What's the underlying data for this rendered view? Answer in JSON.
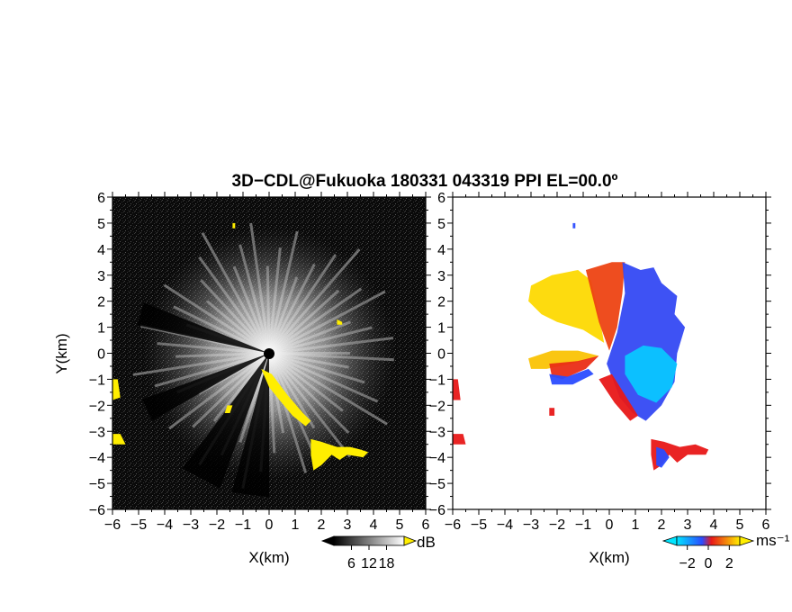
{
  "title": "3D−CDL@Fukuoka 180331 043319 PPI EL=00.0º",
  "chart_data": [
    {
      "type": "heatmap",
      "panel": "reflectivity",
      "xlabel": "X(km)",
      "ylabel": "Y(km)",
      "xlim": [
        -6,
        6
      ],
      "ylim": [
        -6,
        6
      ],
      "x_ticks": [
        "−6",
        "−5",
        "−4",
        "−3",
        "−2",
        "−1",
        "0",
        "1",
        "2",
        "3",
        "4",
        "5",
        "6"
      ],
      "y_ticks": [
        "−6",
        "−5",
        "−4",
        "−3",
        "−2",
        "−1",
        "0",
        "1",
        "2",
        "3",
        "4",
        "5",
        "6"
      ],
      "colormap": [
        "#000000",
        "#ffffff"
      ],
      "highlight_color": "#ffee00",
      "radar_origin": [
        0,
        0
      ],
      "colorbar": {
        "unit": "dB",
        "ticks": [
          "6",
          "12",
          "18"
        ],
        "range": [
          0,
          24
        ]
      },
      "highlight_regions": [
        {
          "points": [
            [
              -0.3,
              -0.6
            ],
            [
              0.1,
              -0.8
            ],
            [
              0.7,
              -1.6
            ],
            [
              1.3,
              -2.3
            ],
            [
              1.6,
              -2.6
            ],
            [
              1.4,
              -2.8
            ],
            [
              0.9,
              -2.4
            ],
            [
              0.4,
              -1.8
            ],
            [
              0.0,
              -1.3
            ]
          ]
        },
        {
          "points": [
            [
              1.6,
              -3.3
            ],
            [
              2.0,
              -3.4
            ],
            [
              2.6,
              -3.6
            ],
            [
              3.1,
              -3.6
            ],
            [
              3.5,
              -3.7
            ],
            [
              3.8,
              -3.8
            ],
            [
              3.6,
              -4.0
            ],
            [
              3.0,
              -3.9
            ],
            [
              2.7,
              -4.1
            ],
            [
              2.4,
              -3.9
            ],
            [
              2.0,
              -4.3
            ],
            [
              1.7,
              -4.5
            ],
            [
              1.6,
              -3.9
            ]
          ]
        },
        {
          "points": [
            [
              -6.0,
              -1.0
            ],
            [
              -5.8,
              -1.0
            ],
            [
              -5.7,
              -1.7
            ],
            [
              -6.0,
              -1.8
            ]
          ]
        },
        {
          "points": [
            [
              -6.0,
              -3.1
            ],
            [
              -5.7,
              -3.1
            ],
            [
              -5.5,
              -3.5
            ],
            [
              -6.0,
              -3.5
            ]
          ]
        },
        {
          "points": [
            [
              -1.6,
              -2.0
            ],
            [
              -1.4,
              -2.0
            ],
            [
              -1.5,
              -2.3
            ],
            [
              -1.7,
              -2.3
            ]
          ]
        },
        {
          "points": [
            [
              -1.4,
              4.8
            ],
            [
              -1.3,
              4.8
            ],
            [
              -1.3,
              5.0
            ],
            [
              -1.4,
              5.0
            ]
          ]
        },
        {
          "points": [
            [
              2.6,
              1.3
            ],
            [
              2.8,
              1.2
            ],
            [
              2.8,
              1.1
            ],
            [
              2.6,
              1.1
            ]
          ]
        }
      ]
    },
    {
      "type": "heatmap",
      "panel": "doppler_velocity",
      "xlabel": "X(km)",
      "ylabel": "",
      "xlim": [
        -6,
        6
      ],
      "ylim": [
        -6,
        6
      ],
      "x_ticks": [
        "−6",
        "−5",
        "−4",
        "−3",
        "−2",
        "−1",
        "0",
        "1",
        "2",
        "3",
        "4",
        "5",
        "6"
      ],
      "y_ticks": [
        "−6",
        "−5",
        "−4",
        "−3",
        "−2",
        "−1",
        "0",
        "1",
        "2",
        "3",
        "4",
        "5",
        "6"
      ],
      "colormap": [
        "#00e5ff",
        "#2b4cff",
        "#e81818",
        "#ffee00"
      ],
      "radar_origin": [
        0,
        0
      ],
      "colorbar": {
        "unit": "ms⁻¹",
        "ticks": [
          "−2",
          "0",
          "2"
        ],
        "range": [
          -3,
          3
        ]
      },
      "velocity_regions": [
        {
          "velocity": 2.8,
          "points": [
            [
              -3.0,
              2.6
            ],
            [
              -2.2,
              3.0
            ],
            [
              -1.2,
              3.2
            ],
            [
              -0.7,
              2.8
            ],
            [
              -0.4,
              1.5
            ],
            [
              -0.2,
              0.4
            ],
            [
              -1.0,
              0.9
            ],
            [
              -2.0,
              1.2
            ],
            [
              -2.6,
              1.5
            ],
            [
              -3.1,
              2.0
            ]
          ]
        },
        {
          "velocity": 1.4,
          "points": [
            [
              -0.9,
              3.2
            ],
            [
              0.1,
              3.5
            ],
            [
              0.6,
              3.5
            ],
            [
              0.5,
              2.3
            ],
            [
              0.3,
              1.0
            ],
            [
              0.0,
              0.1
            ],
            [
              -0.4,
              1.2
            ],
            [
              -0.7,
              2.4
            ]
          ]
        },
        {
          "velocity": -0.9,
          "points": [
            [
              0.5,
              3.5
            ],
            [
              1.2,
              3.2
            ],
            [
              1.7,
              3.3
            ],
            [
              2.0,
              2.7
            ],
            [
              2.6,
              2.2
            ],
            [
              2.5,
              1.5
            ],
            [
              2.9,
              1.0
            ],
            [
              2.6,
              0.0
            ],
            [
              2.5,
              -1.1
            ],
            [
              2.0,
              -2.0
            ],
            [
              1.4,
              -2.6
            ],
            [
              0.9,
              -2.3
            ],
            [
              0.4,
              -1.7
            ],
            [
              -0.1,
              -0.4
            ],
            [
              0.3,
              0.8
            ],
            [
              0.6,
              2.3
            ]
          ]
        },
        {
          "velocity": -2.6,
          "points": [
            [
              0.6,
              -0.1
            ],
            [
              1.3,
              0.3
            ],
            [
              2.0,
              0.2
            ],
            [
              2.6,
              -0.4
            ],
            [
              2.4,
              -1.3
            ],
            [
              1.8,
              -1.9
            ],
            [
              1.1,
              -1.6
            ],
            [
              0.6,
              -0.8
            ]
          ]
        },
        {
          "velocity": 2.6,
          "points": [
            [
              -3.1,
              -0.2
            ],
            [
              -2.2,
              0.1
            ],
            [
              -1.2,
              0.1
            ],
            [
              -0.4,
              -0.1
            ],
            [
              -1.4,
              -0.4
            ],
            [
              -2.4,
              -0.6
            ],
            [
              -3.0,
              -0.6
            ]
          ]
        },
        {
          "velocity": 1.2,
          "points": [
            [
              -2.3,
              -0.4
            ],
            [
              -1.2,
              -0.3
            ],
            [
              -0.4,
              -0.1
            ],
            [
              -0.9,
              -0.6
            ],
            [
              -1.8,
              -1.0
            ],
            [
              -2.2,
              -0.9
            ]
          ]
        },
        {
          "velocity": -1.0,
          "points": [
            [
              -2.3,
              -0.8
            ],
            [
              -1.6,
              -0.9
            ],
            [
              -0.8,
              -0.6
            ],
            [
              -0.6,
              -0.8
            ],
            [
              -1.4,
              -1.2
            ],
            [
              -2.2,
              -1.2
            ]
          ]
        },
        {
          "velocity": 1.0,
          "points": [
            [
              -0.4,
              -1.0
            ],
            [
              0.1,
              -0.8
            ],
            [
              0.6,
              -1.6
            ],
            [
              1.1,
              -2.4
            ],
            [
              0.8,
              -2.6
            ],
            [
              0.2,
              -1.9
            ]
          ]
        },
        {
          "velocity": 1.0,
          "points": [
            [
              1.6,
              -3.3
            ],
            [
              2.1,
              -3.4
            ],
            [
              2.7,
              -3.6
            ],
            [
              3.3,
              -3.5
            ],
            [
              3.8,
              -3.7
            ],
            [
              3.7,
              -3.9
            ],
            [
              3.0,
              -3.9
            ],
            [
              2.6,
              -4.2
            ],
            [
              2.3,
              -3.9
            ],
            [
              2.0,
              -4.3
            ],
            [
              1.7,
              -4.5
            ],
            [
              1.6,
              -3.9
            ]
          ]
        },
        {
          "velocity": -1.0,
          "points": [
            [
              1.8,
              -3.6
            ],
            [
              2.1,
              -3.7
            ],
            [
              2.3,
              -4.0
            ],
            [
              2.0,
              -4.4
            ],
            [
              1.8,
              -4.3
            ]
          ]
        },
        {
          "velocity": 1.0,
          "points": [
            [
              -6.0,
              -1.0
            ],
            [
              -5.8,
              -1.0
            ],
            [
              -5.7,
              -1.8
            ],
            [
              -6.0,
              -1.8
            ]
          ]
        },
        {
          "velocity": 1.0,
          "points": [
            [
              -6.0,
              -3.1
            ],
            [
              -5.6,
              -3.1
            ],
            [
              -5.5,
              -3.5
            ],
            [
              -6.0,
              -3.5
            ]
          ]
        },
        {
          "velocity": -1.0,
          "points": [
            [
              -1.4,
              4.8
            ],
            [
              -1.3,
              4.8
            ],
            [
              -1.3,
              5.0
            ],
            [
              -1.4,
              5.0
            ]
          ]
        },
        {
          "velocity": 1.0,
          "points": [
            [
              -2.3,
              -2.1
            ],
            [
              -2.1,
              -2.1
            ],
            [
              -2.1,
              -2.4
            ],
            [
              -2.3,
              -2.4
            ]
          ]
        }
      ]
    }
  ]
}
